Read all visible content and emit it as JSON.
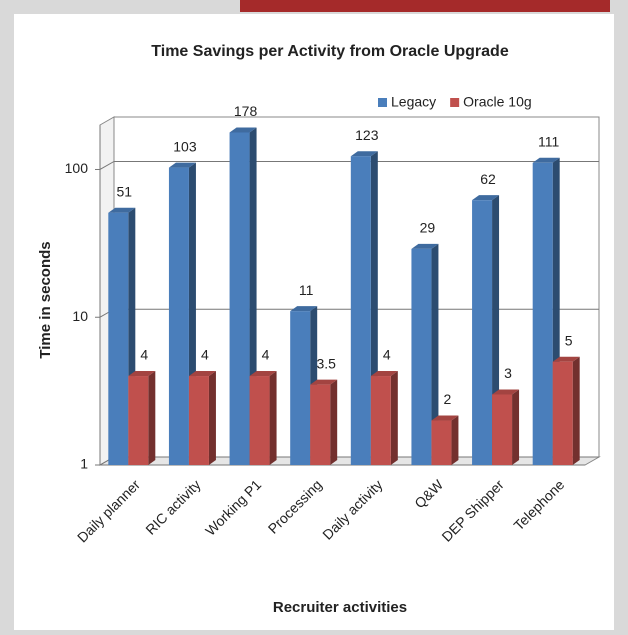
{
  "chart_data": {
    "type": "bar",
    "title": "Time Savings per Activity from Oracle Upgrade",
    "x_label": "Recruiter activities",
    "y_label": "Time in seconds",
    "categories": [
      "Daily planner",
      "RIC activity",
      "Working P1",
      "Processing",
      "Daily activity",
      "Q&W",
      "DEP Shipper",
      "Telephone"
    ],
    "series": [
      {
        "name": "Legacy",
        "color": "#4a7ebb",
        "values": [
          51,
          103,
          178,
          11,
          123,
          29,
          62,
          111
        ]
      },
      {
        "name": "Oracle 10g",
        "color": "#c0504d",
        "values": [
          4,
          4,
          4,
          3.5,
          4,
          2,
          3,
          5
        ]
      }
    ],
    "ylim": [
      1,
      200
    ],
    "yticks": [
      1,
      10,
      100
    ],
    "log_scale": true,
    "grid": true,
    "legend": "top-right"
  }
}
